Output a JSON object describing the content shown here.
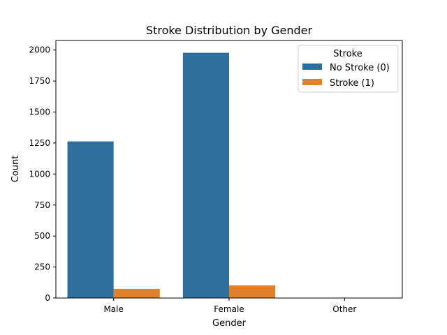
{
  "chart_data": {
    "type": "bar",
    "title": "Stroke Distribution by Gender",
    "xlabel": "Gender",
    "ylabel": "Count",
    "categories": [
      "Male",
      "Female",
      "Other"
    ],
    "series": [
      {
        "name": "No Stroke (0)",
        "color": "#2e6f9e",
        "values": [
          1263,
          1978,
          0
        ]
      },
      {
        "name": "Stroke (1)",
        "color": "#e1812c",
        "values": [
          74,
          102,
          0
        ]
      }
    ],
    "ylim": [
      0,
      2077
    ],
    "yticks": [
      0,
      250,
      500,
      750,
      1000,
      1250,
      1500,
      1750,
      2000
    ],
    "ytick_labels": [
      "0",
      "250",
      "500",
      "750",
      "1000",
      "1250",
      "1500",
      "1750",
      "2000"
    ],
    "legend": {
      "title": "Stroke",
      "placement": "top-right"
    },
    "grid": false
  }
}
